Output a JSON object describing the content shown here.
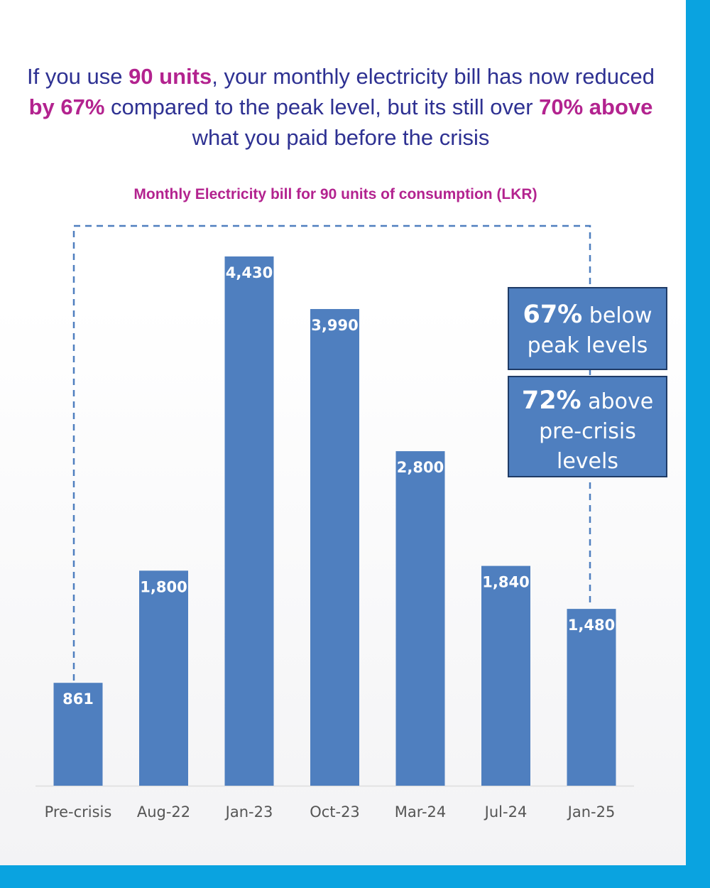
{
  "headline": {
    "p1": "If you use ",
    "h1": "90 units",
    "p2": ", your monthly electricity bill has now reduced ",
    "h2": "by 67%",
    "p3": " compared to the peak level, but its still over ",
    "h3": "70% above",
    "p4": " what you paid before the crisis"
  },
  "annotations": {
    "below_pct": "67%",
    "below_text": " below peak levels",
    "above_pct": "72%",
    "above_text": " above pre-crisis levels"
  },
  "colors": {
    "bar": "#4f7fbf",
    "accent": "#b3238f",
    "headline": "#2e3192",
    "border": "#0aa3e0"
  },
  "chart_data": {
    "type": "bar",
    "title": "Monthly Electricity bill for 90 units of consumption (LKR)",
    "categories": [
      "Pre-crisis",
      "Aug-22",
      "Jan-23",
      "Oct-23",
      "Mar-24",
      "Jul-24",
      "Jan-25"
    ],
    "values": [
      861,
      1800,
      4430,
      3990,
      2800,
      1840,
      1480
    ],
    "value_labels": [
      "861",
      "1,800",
      "4,430",
      "3,990",
      "2,800",
      "1,840",
      "1,480"
    ],
    "xlabel": "",
    "ylabel": "",
    "grid": false
  }
}
